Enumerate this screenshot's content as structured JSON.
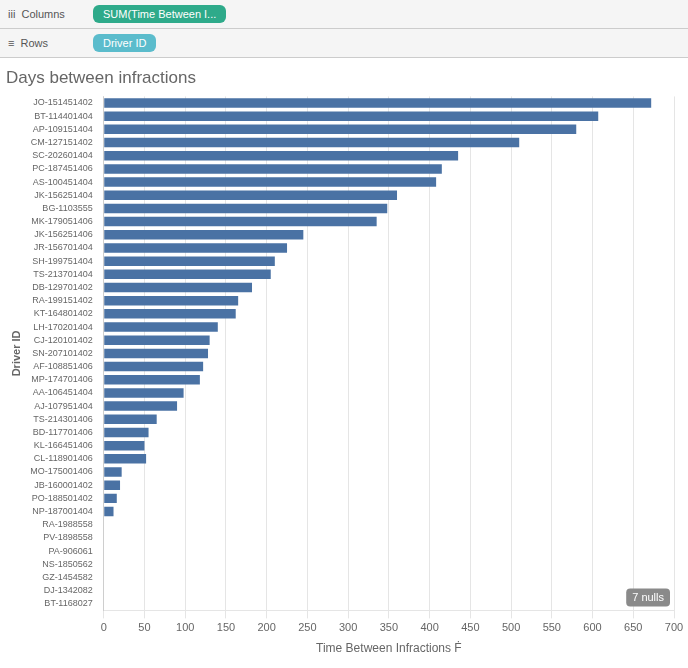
{
  "chart_data": {
    "type": "bar",
    "orientation": "horizontal",
    "title": "Days between infractions",
    "xlabel": "Time Between Infractions Ḟ",
    "ylabel": "Driver ID",
    "categories": [
      "JO-151451402",
      "BT-114401404",
      "AP-109151404",
      "CM-127151402",
      "SC-202601404",
      "PC-187451406",
      "AS-100451404",
      "JK-156251404",
      "BG-1103555",
      "MK-179051406",
      "JK-156251406",
      "JR-156701404",
      "SH-199751404",
      "TS-213701404",
      "DB-129701402",
      "RA-199151402",
      "KT-164801402",
      "LH-170201404",
      "CJ-120101402",
      "SN-207101402",
      "AF-108851406",
      "MP-174701406",
      "AA-106451404",
      "AJ-107951404",
      "TS-214301406",
      "BD-117701406",
      "KL-166451406",
      "CL-118901406",
      "MO-175001406",
      "JB-160001402",
      "PO-188501402",
      "NP-187001404",
      "RA-1988558",
      "PV-1898558",
      "PA-906061",
      "NS-1850562",
      "GZ-1454582",
      "DJ-1342082",
      "BT-1168027"
    ],
    "values": [
      672,
      607,
      580,
      510,
      435,
      415,
      408,
      360,
      348,
      335,
      245,
      225,
      210,
      205,
      182,
      165,
      162,
      140,
      130,
      128,
      122,
      118,
      98,
      90,
      65,
      55,
      50,
      52,
      22,
      20,
      16,
      12,
      0,
      0,
      0,
      0,
      0,
      0,
      0
    ],
    "color": "#4a72a4",
    "xlim": [
      0,
      700
    ],
    "xticks": [
      0,
      50,
      100,
      150,
      200,
      250,
      300,
      350,
      400,
      450,
      500,
      550,
      600,
      650,
      700
    ],
    "grid": true,
    "annotations": [
      "iii  Columns",
      "SUM(Time Between I...",
      "≡  Rows",
      "Driver ID",
      "7 nulls"
    ]
  }
}
